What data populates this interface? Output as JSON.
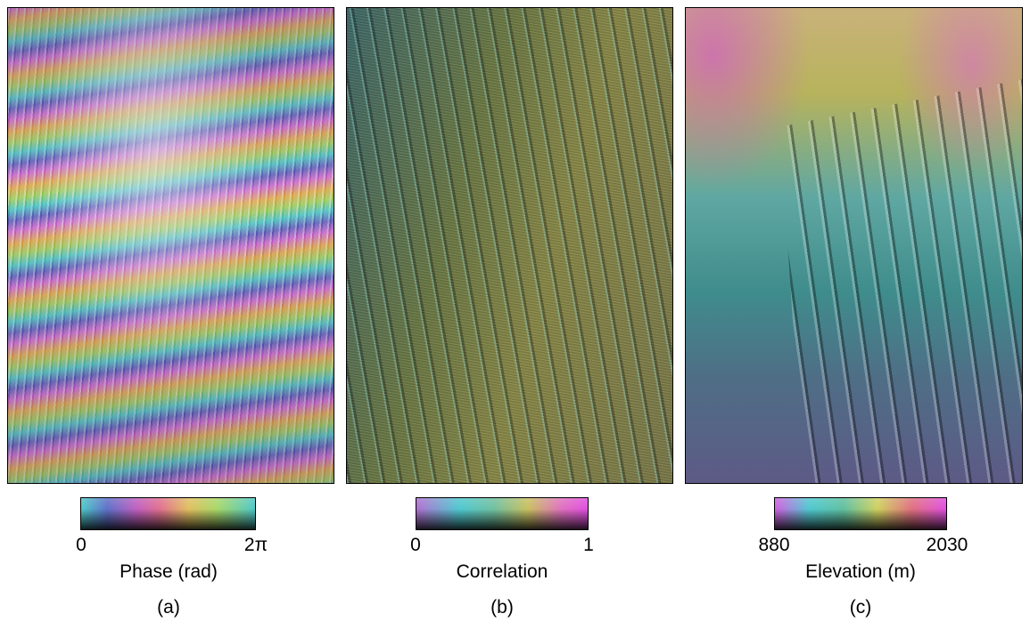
{
  "panels": [
    {
      "colorbar": {
        "min_label": "0",
        "max_label": "2π",
        "title": "Phase (rad)"
      },
      "caption": "(a)"
    },
    {
      "colorbar": {
        "min_label": "0",
        "max_label": "1",
        "title": "Correlation"
      },
      "caption": "(b)"
    },
    {
      "colorbar": {
        "min_label": "880",
        "max_label": "2030",
        "title": "Elevation (m)"
      },
      "caption": "(c)"
    }
  ]
}
